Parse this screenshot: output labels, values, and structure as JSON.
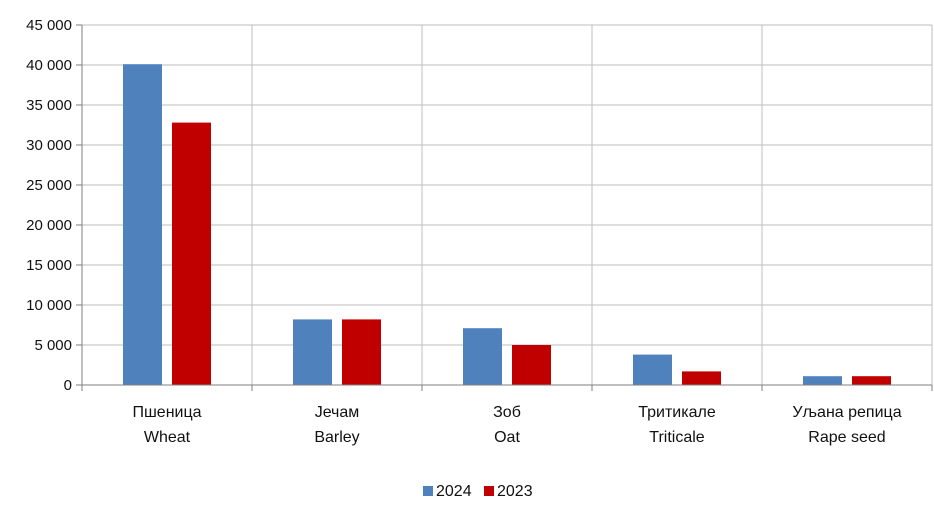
{
  "chart_data": {
    "type": "bar",
    "categories": [
      {
        "line1": "Пшеница",
        "line2": "Wheat"
      },
      {
        "line1": "Јечам",
        "line2": "Barley"
      },
      {
        "line1": "Зоб",
        "line2": "Oat"
      },
      {
        "line1": "Тритикале",
        "line2": "Triticale"
      },
      {
        "line1": "Уљана репица",
        "line2": "Rape seed"
      }
    ],
    "series": [
      {
        "name": "2024",
        "color": "#4f81bd",
        "values": [
          40100,
          8200,
          7100,
          3800,
          1100
        ]
      },
      {
        "name": "2023",
        "color": "#c00000",
        "values": [
          32800,
          8200,
          5000,
          1700,
          1100
        ]
      }
    ],
    "ylim": [
      0,
      45000
    ],
    "yticks": [
      0,
      5000,
      10000,
      15000,
      20000,
      25000,
      30000,
      35000,
      40000,
      45000
    ],
    "ytick_labels": [
      "0",
      "5 000",
      "10 000",
      "15 000",
      "20 000",
      "25 000",
      "30 000",
      "35 000",
      "40 000",
      "45 000"
    ],
    "grid": true,
    "legend_position": "bottom"
  }
}
